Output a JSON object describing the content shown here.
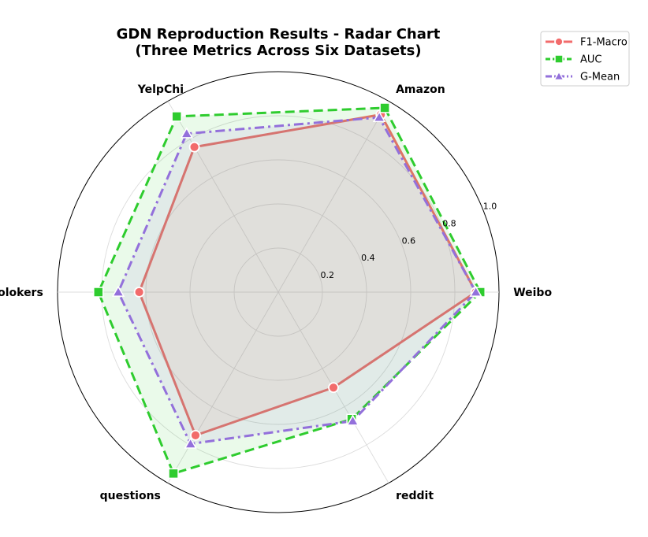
{
  "chart_data": {
    "type": "radar",
    "title": "GDN Reproduction Results - Radar Chart",
    "subtitle": "(Three Metrics Across Six Datasets)",
    "categories": [
      "Weibo",
      "Amazon",
      "YelpChi",
      "Tolokers",
      "questions",
      "reddit"
    ],
    "rticks": [
      "0.2",
      "0.4",
      "0.6",
      "0.8",
      "1.0"
    ],
    "rtick_values": [
      0.2,
      0.4,
      0.6,
      0.8,
      1.0
    ],
    "rlim": [
      0,
      1.0
    ],
    "grid": true,
    "legend_position": "top-right",
    "series": [
      {
        "name": "F1-Macro",
        "color": "#f26b6b",
        "style": "solid",
        "marker": "circle",
        "values": [
          0.895,
          0.93,
          0.76,
          0.63,
          0.75,
          0.5
        ]
      },
      {
        "name": "AUC",
        "color": "#2ecc2e",
        "style": "dashed",
        "marker": "square",
        "values": [
          0.915,
          0.965,
          0.92,
          0.815,
          0.95,
          0.665
        ]
      },
      {
        "name": "G-Mean",
        "color": "#9370db",
        "style": "dashdot",
        "marker": "triangle",
        "values": [
          0.895,
          0.915,
          0.83,
          0.725,
          0.795,
          0.675
        ]
      }
    ]
  }
}
